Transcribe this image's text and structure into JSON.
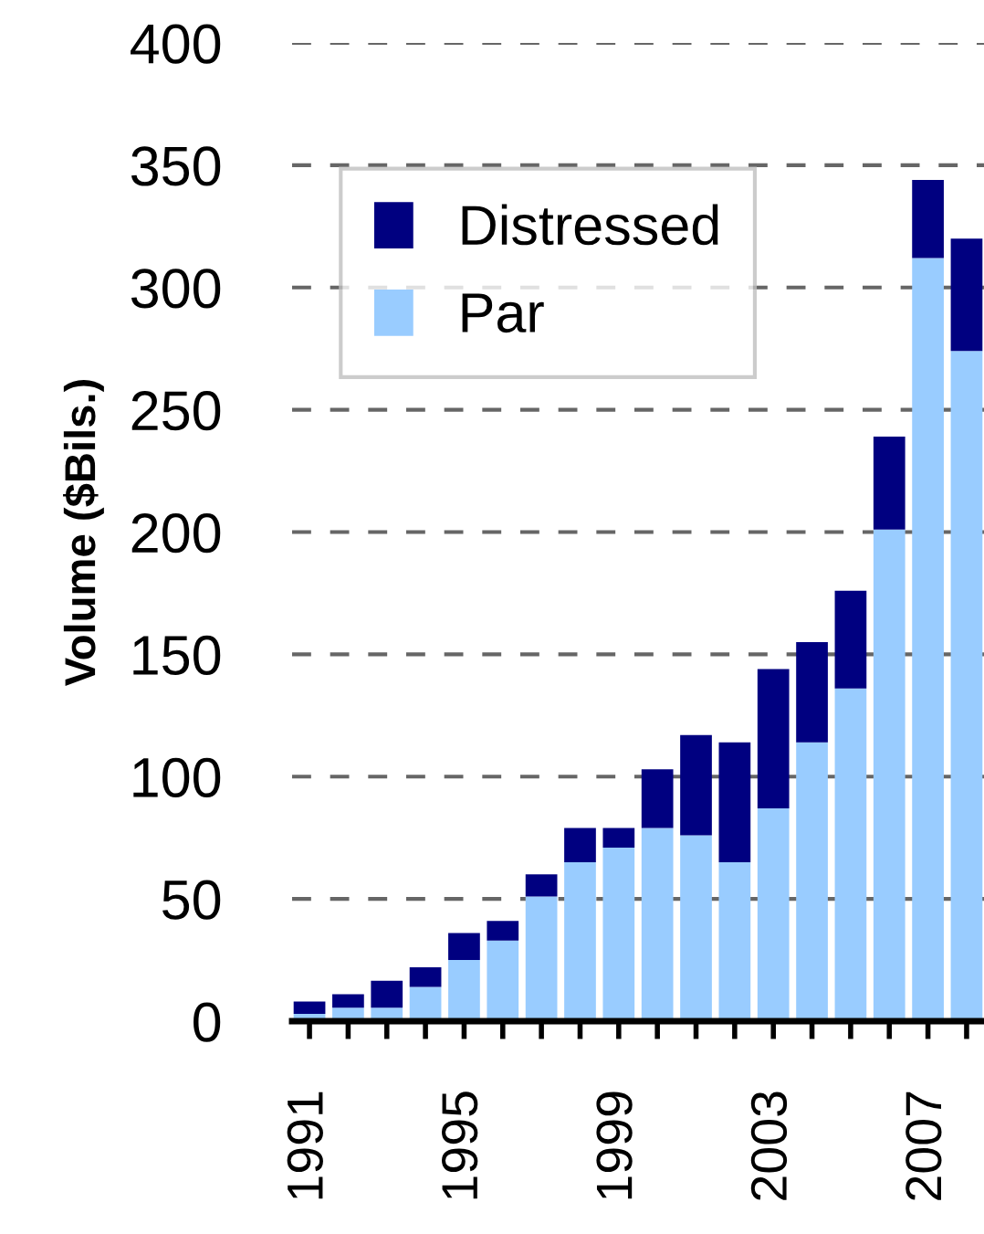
{
  "chart_data": {
    "type": "bar",
    "stacked": true,
    "ylabel": "Volume ($Bils.)",
    "categories": [
      "1991",
      null,
      null,
      null,
      "1995",
      null,
      null,
      null,
      "1999",
      null,
      null,
      null,
      "2003",
      null,
      null,
      null,
      "2007",
      null
    ],
    "series": [
      {
        "name": "Par",
        "color": "#99ccff",
        "values": [
          3,
          5.5,
          5.5,
          14,
          25,
          33,
          51,
          65,
          71,
          79,
          76,
          65,
          87,
          114,
          136,
          201,
          312,
          274
        ]
      },
      {
        "name": "Distressed",
        "color": "#000080",
        "values": [
          5,
          5.5,
          11,
          8,
          11,
          8,
          9,
          14,
          8,
          24,
          41,
          49,
          57,
          41,
          40,
          38,
          32,
          46
        ]
      }
    ],
    "ylim": [
      0,
      400
    ],
    "yticks": [
      0,
      50,
      100,
      150,
      200,
      250,
      300,
      350,
      400
    ],
    "grid": "y",
    "legend": "top left"
  }
}
